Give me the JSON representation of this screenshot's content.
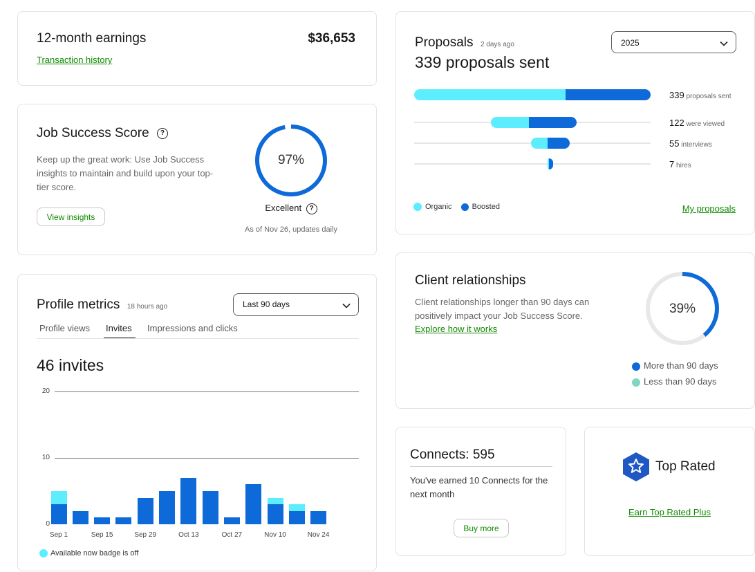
{
  "earnings": {
    "title": "12-month earnings",
    "amount": "$36,653",
    "link": "Transaction history"
  },
  "job_success": {
    "title": "Job Success Score",
    "description": "Keep up the great work: Use Job Success insights to maintain and build upon your top-tier score.",
    "button": "View insights",
    "score": "97%",
    "score_value": 0.97,
    "rating": "Excellent",
    "updated": "As of Nov 26, updates daily"
  },
  "profile_metrics": {
    "title": "Profile metrics",
    "age": "18 hours ago",
    "range_select": "Last 90 days",
    "tabs": [
      "Profile views",
      "Invites",
      "Impressions and clicks"
    ],
    "active_tab": "Invites",
    "headline": "46 invites",
    "legend": "Available now badge is off"
  },
  "chart_data": {
    "type": "bar",
    "stacked": true,
    "ylim": [
      0,
      20
    ],
    "yticks": [
      "20",
      "10",
      "0"
    ],
    "categories": [
      "Sep 1",
      "Sep 8",
      "Sep 15",
      "Sep 22",
      "Sep 29",
      "Oct 6",
      "Oct 13",
      "Oct 20",
      "Oct 27",
      "Nov 3",
      "Nov 10",
      "Nov 17",
      "Nov 24"
    ],
    "xtick_labels": [
      "Sep 1",
      "Sep 15",
      "Sep 29",
      "Oct 13",
      "Oct 27",
      "Nov 10",
      "Nov 24"
    ],
    "series": [
      {
        "values": [
          3,
          2,
          1,
          1,
          4,
          5,
          7,
          5,
          1,
          6,
          3,
          2,
          2
        ],
        "color": "#0e6ad9"
      },
      {
        "name": "Available now badge is off",
        "values": [
          2,
          0,
          0,
          0,
          0,
          0,
          0,
          0,
          0,
          0,
          1,
          1,
          0
        ],
        "color": "#5ceeff"
      }
    ]
  },
  "proposals": {
    "title": "Proposals",
    "age": "2 days ago",
    "headline": "339 proposals sent",
    "year_select": "2025",
    "funnel": [
      {
        "count": "339",
        "label": "proposals sent",
        "organic": 217,
        "boosted": 122
      },
      {
        "count": "122",
        "label": "were viewed",
        "organic": 54,
        "boosted": 68
      },
      {
        "count": "55",
        "label": "interviews",
        "organic": 24,
        "boosted": 31
      },
      {
        "count": "7",
        "label": "hires",
        "organic": 2,
        "boosted": 5
      }
    ],
    "legend_organic": "Organic",
    "legend_boosted": "Boosted",
    "link": "My proposals",
    "colors": {
      "organic": "#5ceeff",
      "boosted": "#0e6ad9"
    }
  },
  "client_relationships": {
    "title": "Client relationships",
    "description": "Client relationships longer than 90 days can positively impact your Job Success Score.",
    "link": "Explore how it works",
    "percent": "39%",
    "percent_value": 0.39,
    "legend_more": "More than 90 days",
    "legend_less": "Less than 90 days",
    "colors": {
      "more": "#0e6ad9",
      "less": "#7fd6c4"
    }
  },
  "connects": {
    "title": "Connects: 595",
    "description": "You've earned 10 Connects for the next month",
    "button": "Buy more"
  },
  "top_rated": {
    "title": "Top Rated",
    "link": "Earn Top Rated Plus"
  }
}
